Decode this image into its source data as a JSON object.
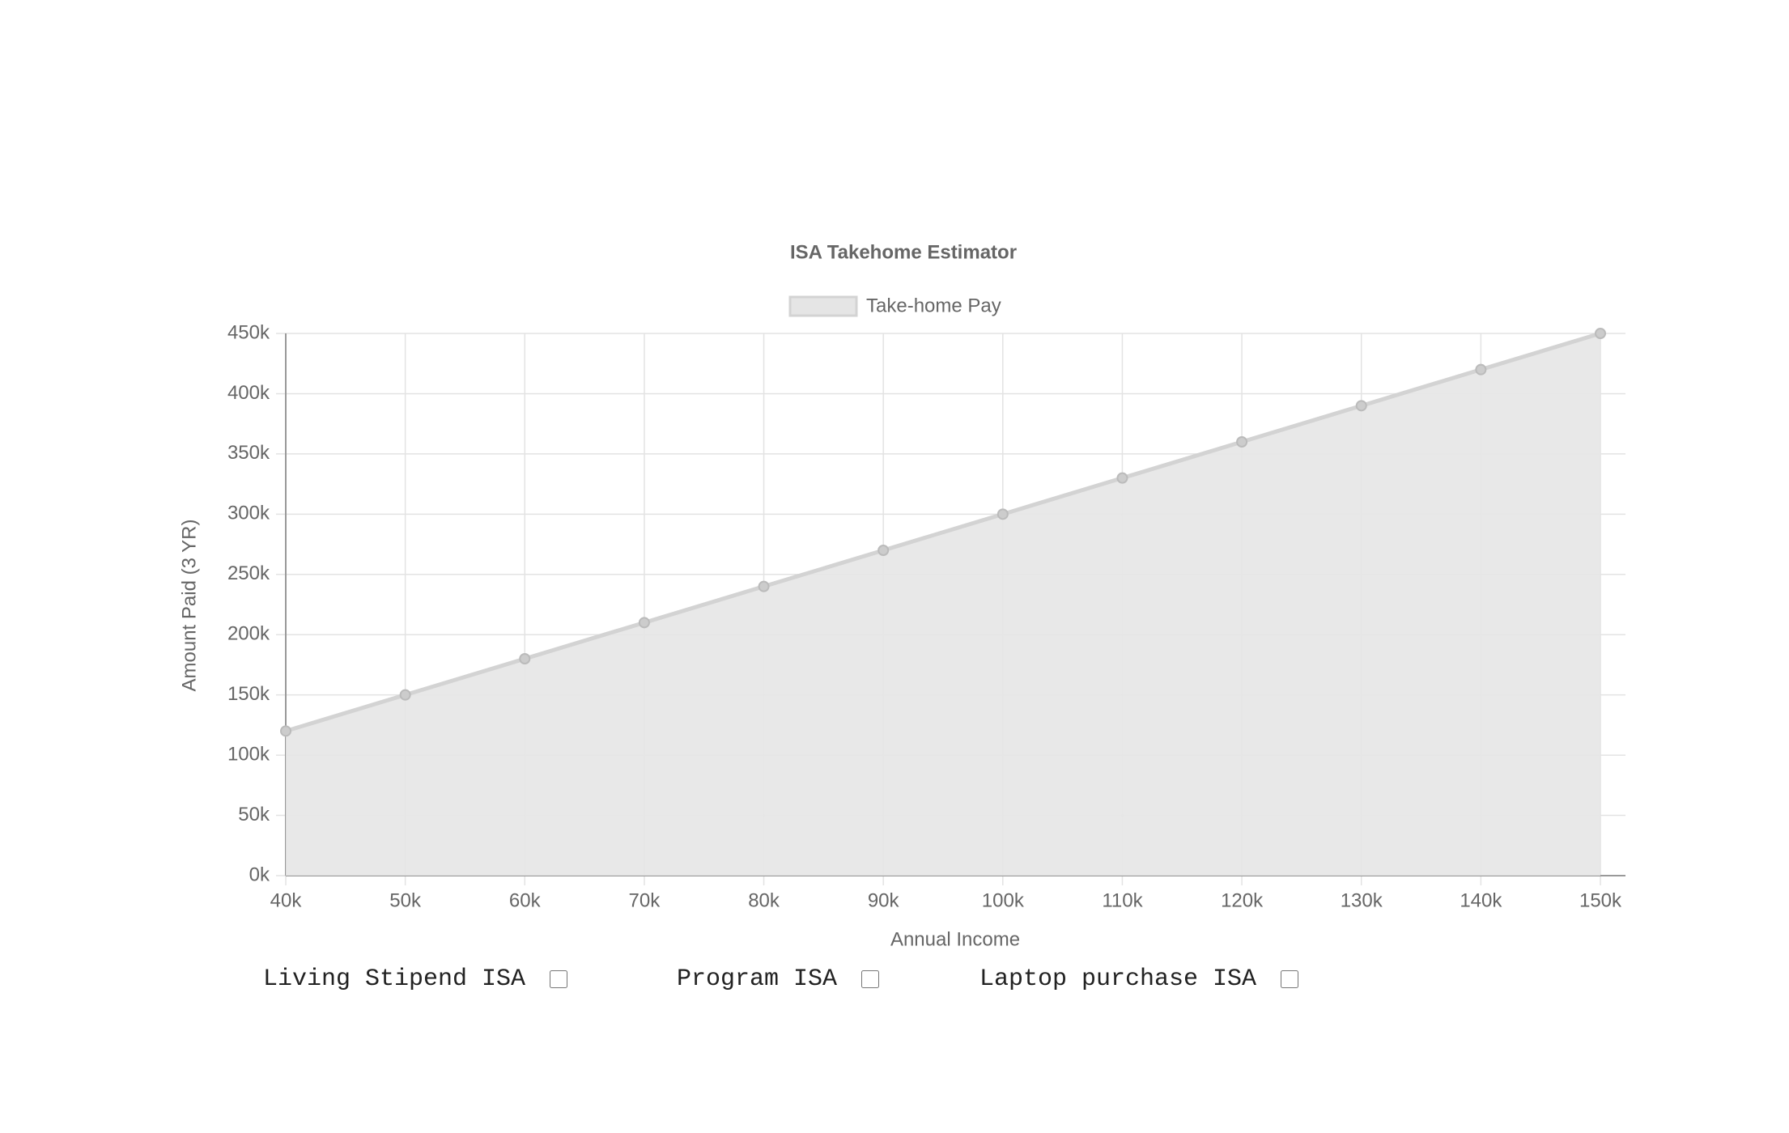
{
  "chart_data": {
    "type": "line",
    "title": "ISA Takehome Estimator",
    "x_label": "Annual Income",
    "y_label": "Amount Paid (3 YR)",
    "categories": [
      "40k",
      "50k",
      "60k",
      "70k",
      "80k",
      "90k",
      "100k",
      "110k",
      "120k",
      "130k",
      "140k",
      "150k"
    ],
    "series": [
      {
        "name": "Take-home Pay",
        "color": "#d3d3d3",
        "fill": "#e5e5e5",
        "values": [
          120000,
          150000,
          180000,
          210000,
          240000,
          270000,
          300000,
          330000,
          360000,
          390000,
          420000,
          450000
        ]
      }
    ],
    "ylim": [
      0,
      450000
    ],
    "yticks": [
      {
        "value": 0,
        "label": "0k"
      },
      {
        "value": 50000,
        "label": "50k"
      },
      {
        "value": 100000,
        "label": "100k"
      },
      {
        "value": 150000,
        "label": "150k"
      },
      {
        "value": 200000,
        "label": "200k"
      },
      {
        "value": 250000,
        "label": "250k"
      },
      {
        "value": 300000,
        "label": "300k"
      },
      {
        "value": 350000,
        "label": "350k"
      },
      {
        "value": 400000,
        "label": "400k"
      },
      {
        "value": 450000,
        "label": "450k"
      }
    ],
    "grid": true,
    "legend": "top"
  },
  "controls": [
    {
      "label": "Living Stipend ISA"
    },
    {
      "label": "Program ISA"
    },
    {
      "label": "Laptop purchase ISA"
    }
  ]
}
